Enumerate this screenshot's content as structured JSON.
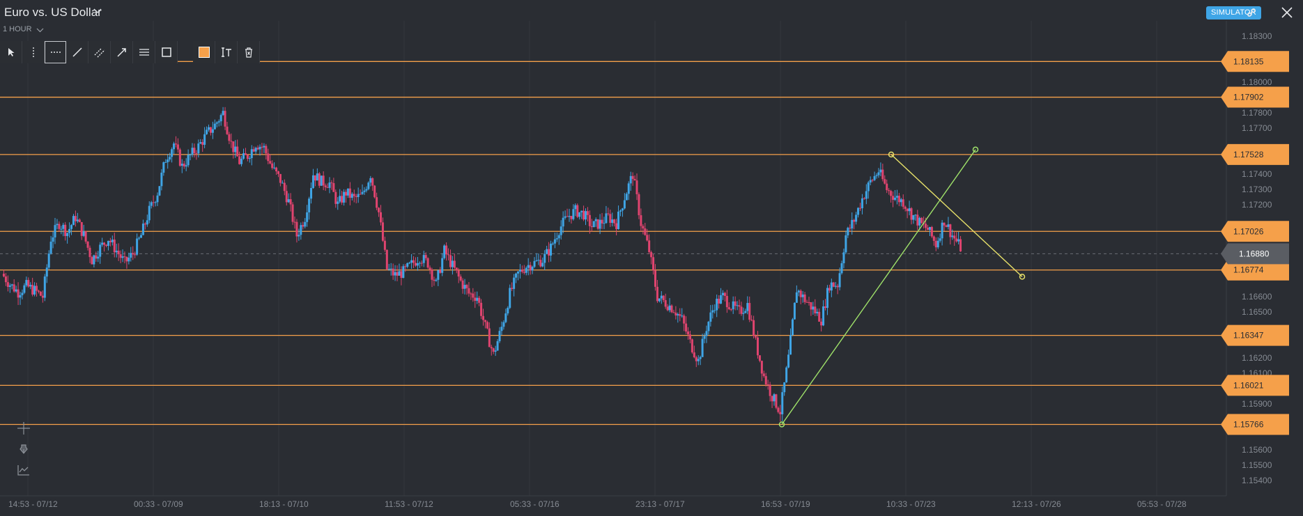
{
  "header": {
    "title": "Euro vs. US Dollar",
    "timeframe": "1 HOUR",
    "mode_badge": "SIMULATOR"
  },
  "icons": {
    "title_dropdown": "chevron-down-icon",
    "timeframe_dropdown": "chevron-down-icon",
    "link": "link-icon",
    "close": "close-icon",
    "toolbar": [
      "cursor-icon",
      "vertical-line-icon",
      "horizontal-line-icon",
      "trendline-icon",
      "parallel-channel-icon",
      "arrow-icon",
      "fibonacci-icon",
      "rectangle-icon"
    ],
    "toolbar_secondary": [
      "color-swatch",
      "text-icon",
      "delete-icon"
    ],
    "side": [
      "crosshair-icon",
      "pen-icon",
      "indicator-icon"
    ]
  },
  "colors": {
    "background": "#2a2d33",
    "grid": "#34373d",
    "up_candle": "#3fa5e6",
    "down_candle": "#e0446f",
    "horizontal_line": "#f5a04a",
    "trendline_up": "#9fe26a",
    "trendline_down": "#e8e26a",
    "price_label": "#f5a04a",
    "current_price_label": "#5a5d63"
  },
  "chart_data": {
    "type": "candlestick",
    "title": "",
    "ylim": [
      1.153,
      1.184
    ],
    "y_ticks": [
      "1.18300",
      "1.18000",
      "1.17800",
      "1.17700",
      "1.17400",
      "1.17300",
      "1.17200",
      "1.16600",
      "1.16500",
      "1.16200",
      "1.16100",
      "1.15900",
      "1.15600",
      "1.15500",
      "1.15400"
    ],
    "x_ticks": [
      "14:53 - 07/12",
      "00:33 - 07/09",
      "18:13 - 07/10",
      "11:53 - 07/12",
      "05:33 - 07/16",
      "23:13 - 07/17",
      "16:53 - 07/19",
      "10:33 - 07/23",
      "12:13 - 07/26",
      "05:53 - 07/28"
    ],
    "current_price": "1.16880",
    "horizontal_lines": [
      "1.18135",
      "1.17902",
      "1.17528",
      "1.17026",
      "1.16774",
      "1.16347",
      "1.16021",
      "1.15766"
    ],
    "trendlines": [
      {
        "name": "",
        "start_price": 1.15766,
        "end_price": 1.1756,
        "start_time": "07/19",
        "end_time": "07/24"
      },
      {
        "name": "",
        "start_price": 1.17528,
        "end_price": 1.1673,
        "start_time": "07/23",
        "end_time": "07/25"
      }
    ],
    "price_path": [
      1.1675,
      1.1668,
      1.1663,
      1.1667,
      1.1664,
      1.166,
      1.1698,
      1.1708,
      1.1702,
      1.1712,
      1.17,
      1.1684,
      1.1692,
      1.1698,
      1.169,
      1.1682,
      1.1688,
      1.17,
      1.1716,
      1.1728,
      1.175,
      1.176,
      1.1745,
      1.1752,
      1.1758,
      1.1766,
      1.1772,
      1.178,
      1.176,
      1.1748,
      1.1752,
      1.176,
      1.1757,
      1.1744,
      1.1736,
      1.1722,
      1.17,
      1.1712,
      1.174,
      1.1735,
      1.1734,
      1.172,
      1.1728,
      1.1724,
      1.1726,
      1.174,
      1.1715,
      1.1678,
      1.1674,
      1.1676,
      1.1681,
      1.1686,
      1.1682,
      1.1668,
      1.169,
      1.168,
      1.167,
      1.1662,
      1.166,
      1.164,
      1.1622,
      1.164,
      1.1662,
      1.1675,
      1.168,
      1.1682,
      1.1684,
      1.1692,
      1.1704,
      1.1712,
      1.1716,
      1.1714,
      1.1706,
      1.1708,
      1.1712,
      1.1708,
      1.1725,
      1.174,
      1.1708,
      1.169,
      1.166,
      1.1656,
      1.1652,
      1.1645,
      1.163,
      1.1618,
      1.164,
      1.1655,
      1.166,
      1.1654,
      1.165,
      1.1655,
      1.163,
      1.1608,
      1.1595,
      1.1585,
      1.162,
      1.1665,
      1.1658,
      1.1652,
      1.1645,
      1.1668,
      1.1668,
      1.17,
      1.171,
      1.1724,
      1.1735,
      1.1742,
      1.173,
      1.1725,
      1.1722,
      1.1714,
      1.1708,
      1.1704,
      1.1694,
      1.171,
      1.17,
      1.1692
    ]
  }
}
